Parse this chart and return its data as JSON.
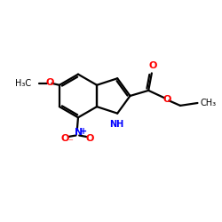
{
  "bg_color": "#ffffff",
  "bond_color": "#000000",
  "N_color": "#0000ff",
  "O_color": "#ff0000",
  "lw": 1.6,
  "figsize": [
    2.5,
    2.5
  ],
  "dpi": 100,
  "xlim": [
    0,
    10
  ],
  "ylim": [
    0,
    10
  ]
}
